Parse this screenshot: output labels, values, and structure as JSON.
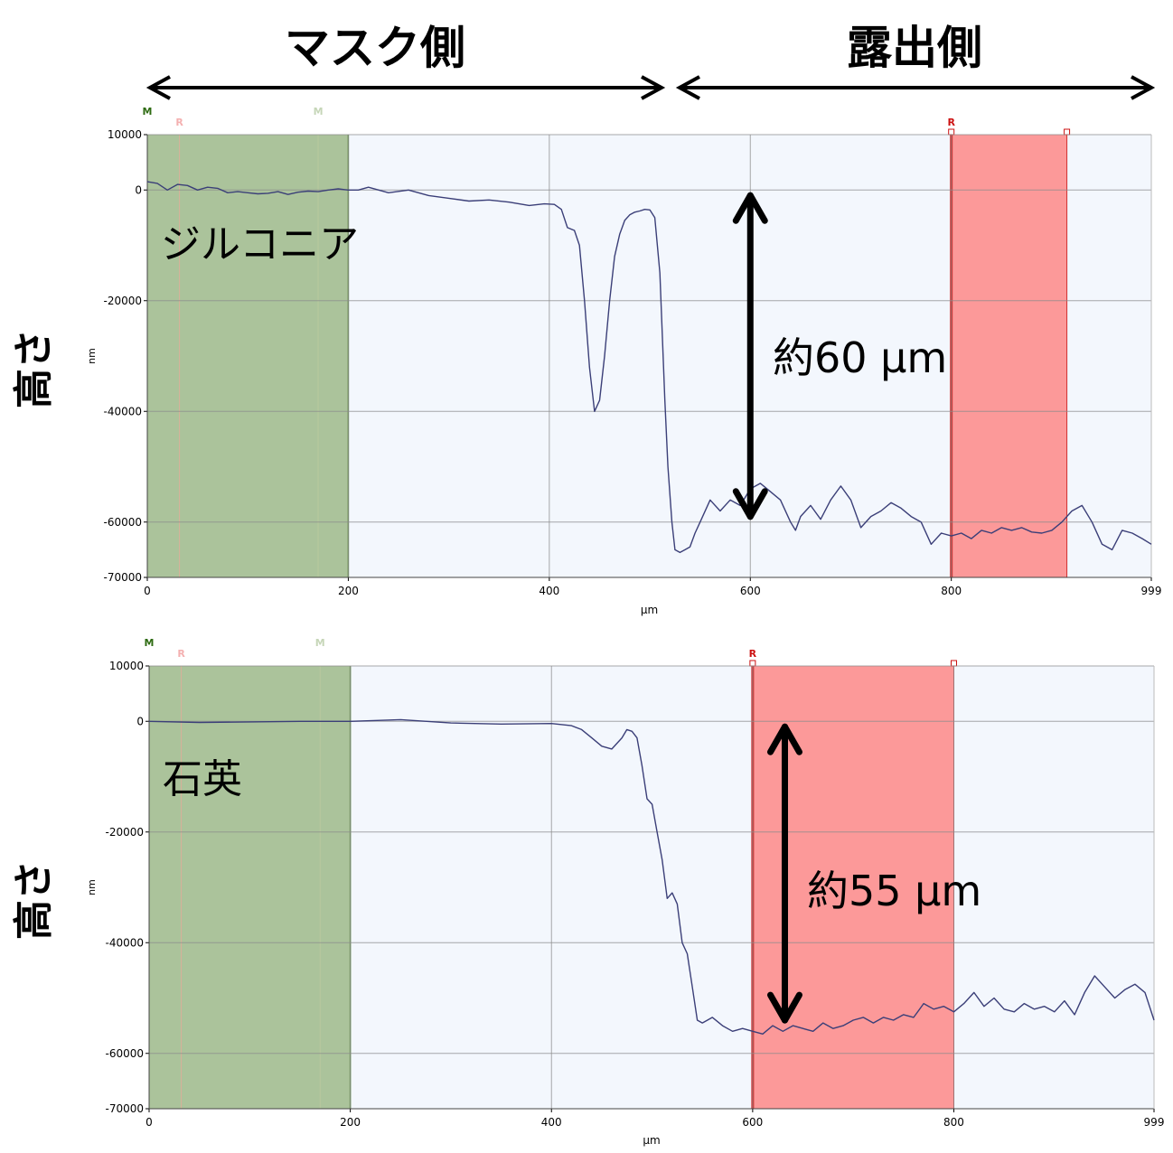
{
  "header": {
    "mask_side": "マスク側",
    "exposed_side": "露出側"
  },
  "colors": {
    "mask_band": "#abc39b",
    "mask_band_edge": "#5a8a3c",
    "ref_band": "#fc9999",
    "ref_band_edge": "#d03030",
    "plot_bg": "#f3f7fd",
    "grid": "#8c8c8c",
    "trace": "#3b3f78",
    "marker_m": "#2e6b12",
    "marker_m_faint": "#c6d6b8",
    "marker_r": "#cc1111",
    "marker_r_faint": "#f4b0b0"
  },
  "chart_data": [
    {
      "type": "line",
      "material_label": "ジルコニア",
      "depth_annotation": "約60 µm",
      "side_ylabel": "高さ",
      "ylabel": "nm",
      "xlabel": "µm",
      "xlim": [
        0,
        999
      ],
      "ylim": [
        -70000,
        10000
      ],
      "x_ticks": [
        0,
        200,
        400,
        600,
        800,
        999
      ],
      "y_ticks": [
        10000,
        0,
        -20000,
        -40000,
        -60000,
        -70000
      ],
      "grid": true,
      "mask_region": [
        0,
        200
      ],
      "reference_region": [
        800,
        915
      ],
      "markers": [
        {
          "label": "M",
          "x": 0,
          "tone": "strong"
        },
        {
          "label": "R",
          "x": 32,
          "tone": "faint"
        },
        {
          "label": "M",
          "x": 170,
          "tone": "faint"
        },
        {
          "label": "R",
          "x": 800,
          "tone": "strong"
        }
      ],
      "arrow": {
        "x": 600,
        "y_top": 0,
        "y_bottom": -60000
      },
      "series": [
        {
          "x": [
            0,
            10,
            20,
            30,
            40,
            50,
            60,
            70,
            80,
            90,
            100,
            110,
            120,
            130,
            140,
            150,
            160,
            170,
            180,
            190,
            200,
            210,
            220,
            240,
            260,
            280,
            300,
            320,
            340,
            360,
            380,
            395,
            405,
            412,
            418,
            425,
            430,
            435,
            440,
            445,
            450,
            455,
            460,
            465,
            470,
            475,
            480,
            485,
            490,
            495,
            500,
            505,
            510,
            515,
            518,
            522,
            525,
            530,
            535,
            540,
            545,
            550,
            560,
            570,
            580,
            590,
            595,
            600,
            610,
            620,
            630,
            640,
            645,
            650,
            660,
            670,
            680,
            690,
            700,
            710,
            720,
            730,
            740,
            750,
            760,
            770,
            780,
            790,
            800,
            810,
            820,
            830,
            840,
            850,
            860,
            870,
            880,
            890,
            900,
            910,
            920,
            930,
            940,
            950,
            960,
            970,
            980,
            990,
            999
          ],
          "y": [
            1500,
            1200,
            0,
            1000,
            800,
            0,
            500,
            300,
            -500,
            -300,
            -500,
            -700,
            -600,
            -300,
            -800,
            -400,
            -200,
            -300,
            0,
            200,
            0,
            0,
            500,
            -500,
            0,
            -1000,
            -1500,
            -2000,
            -1800,
            -2200,
            -2800,
            -2500,
            -2600,
            -3500,
            -6800,
            -7300,
            -10000,
            -20000,
            -32000,
            -40000,
            -38000,
            -30000,
            -20000,
            -12000,
            -8000,
            -5500,
            -4500,
            -4000,
            -3800,
            -3500,
            -3600,
            -5000,
            -15000,
            -38000,
            -50000,
            -60000,
            -65000,
            -65500,
            -65000,
            -64500,
            -62000,
            -60000,
            -56000,
            -58000,
            -56000,
            -57000,
            -55500,
            -54000,
            -53000,
            -54500,
            -56000,
            -60000,
            -61500,
            -59000,
            -57000,
            -59500,
            -56000,
            -53500,
            -56000,
            -61000,
            -59000,
            -58000,
            -56500,
            -57500,
            -59000,
            -60000,
            -64000,
            -62000,
            -62500,
            -62000,
            -63000,
            -61500,
            -62000,
            -61000,
            -61500,
            -61000,
            -61800,
            -62000,
            -61500,
            -60000,
            -58000,
            -57000,
            -60000,
            -64000,
            -65000,
            -61500,
            -62000,
            -63000,
            -64000
          ]
        }
      ]
    },
    {
      "type": "line",
      "material_label": "石英",
      "depth_annotation": "約55 µm",
      "side_ylabel": "高さ",
      "ylabel": "nm",
      "xlabel": "µm",
      "xlim": [
        0,
        999
      ],
      "ylim": [
        -70000,
        10000
      ],
      "x_ticks": [
        0,
        200,
        400,
        600,
        800,
        999
      ],
      "y_ticks": [
        10000,
        0,
        -20000,
        -40000,
        -60000,
        -70000
      ],
      "grid": true,
      "mask_region": [
        0,
        200
      ],
      "reference_region": [
        600,
        800
      ],
      "markers": [
        {
          "label": "M",
          "x": 0,
          "tone": "strong"
        },
        {
          "label": "R",
          "x": 32,
          "tone": "faint"
        },
        {
          "label": "M",
          "x": 170,
          "tone": "faint"
        },
        {
          "label": "R",
          "x": 600,
          "tone": "strong"
        }
      ],
      "arrow": {
        "x": 632,
        "y_top": 0,
        "y_bottom": -55000
      },
      "series": [
        {
          "x": [
            0,
            50,
            100,
            150,
            200,
            220,
            250,
            300,
            350,
            400,
            420,
            430,
            440,
            450,
            460,
            470,
            475,
            480,
            485,
            490,
            495,
            500,
            505,
            510,
            515,
            520,
            525,
            530,
            535,
            540,
            545,
            550,
            555,
            560,
            570,
            580,
            590,
            600,
            610,
            620,
            630,
            640,
            650,
            660,
            670,
            680,
            690,
            700,
            710,
            720,
            730,
            740,
            750,
            760,
            770,
            780,
            790,
            800,
            810,
            820,
            830,
            840,
            850,
            860,
            870,
            880,
            890,
            900,
            910,
            920,
            930,
            940,
            950,
            960,
            970,
            980,
            990,
            999
          ],
          "y": [
            0,
            -200,
            -100,
            0,
            0,
            100,
            300,
            -300,
            -500,
            -400,
            -800,
            -1500,
            -3000,
            -4500,
            -5000,
            -3000,
            -1500,
            -1800,
            -3000,
            -8000,
            -14000,
            -15000,
            -20000,
            -25000,
            -32000,
            -31000,
            -33000,
            -40000,
            -42000,
            -48000,
            -54000,
            -54500,
            -54000,
            -53500,
            -55000,
            -56000,
            -55500,
            -56000,
            -56500,
            -55000,
            -56000,
            -55000,
            -55500,
            -56000,
            -54500,
            -55500,
            -55000,
            -54000,
            -53500,
            -54500,
            -53500,
            -54000,
            -53000,
            -53500,
            -51000,
            -52000,
            -51500,
            -52500,
            -51000,
            -49000,
            -51500,
            -50000,
            -52000,
            -52500,
            -51000,
            -52000,
            -51500,
            -52500,
            -50500,
            -53000,
            -49000,
            -46000,
            -48000,
            -50000,
            -48500,
            -47500,
            -49000,
            -54000
          ]
        }
      ]
    }
  ]
}
